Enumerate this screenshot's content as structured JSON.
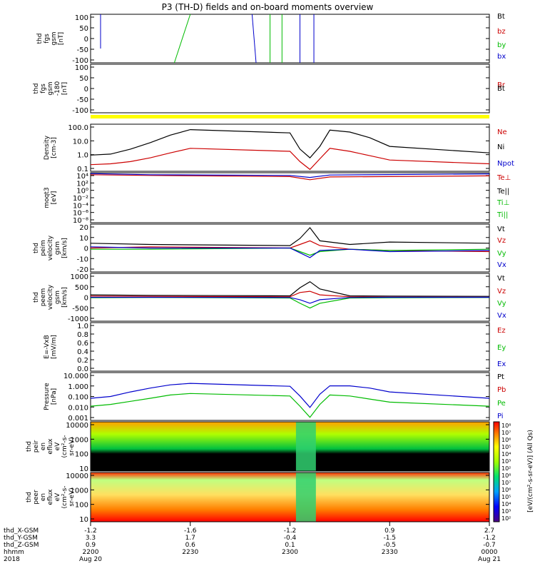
{
  "title": "P3 (TH-D) fields and on-board moments overview",
  "chart_data": {
    "type": "line",
    "title": "P3 (TH-D) fields and on-board moments overview",
    "panels": [
      {
        "id": "fgs",
        "ylabel_lines": [
          "thd",
          "fgs",
          "gsm",
          "[nT]"
        ],
        "yticks": [
          "100",
          "50",
          "0",
          "-50",
          "-100"
        ],
        "ylim": [
          -100,
          100
        ],
        "legend": [
          {
            "label": "Bt",
            "color": "#000000"
          },
          {
            "label": "bz",
            "color": "#cc0000"
          },
          {
            "label": "by",
            "color": "#00bb00"
          },
          {
            "label": "bx",
            "color": "#0000cc"
          }
        ]
      },
      {
        "id": "fgs_zoom",
        "ylabel_lines": [
          "thd",
          "fgs",
          "gsm",
          "-180",
          "[nT]"
        ],
        "yticks": [
          "100",
          "50",
          "0",
          "-50",
          "-100"
        ],
        "ylim": [
          -125,
          125
        ],
        "legend": [
          {
            "label": "Br",
            "color": "#cc0000"
          },
          {
            "label": "Bt",
            "color": "#000000"
          }
        ]
      },
      {
        "id": "density",
        "ylabel_lines": [
          "Density",
          "[cm-3]"
        ],
        "yticks": [
          "100.0",
          "10.0",
          "1.0",
          "0.1"
        ],
        "ylim": [
          0.05,
          300
        ],
        "scale": "log",
        "legend": [
          {
            "label": "Ne",
            "color": "#cc0000"
          },
          {
            "label": "Ni",
            "color": "#000000"
          },
          {
            "label": "Npot",
            "color": "#0000cc"
          }
        ],
        "series": [
          {
            "name": "Ni",
            "color": "#000000",
            "x": [
              2200,
              2210,
              2220,
              2230,
              2240,
              2250,
              2300,
              2305,
              2310,
              2315,
              2320,
              2330,
              2340,
              2350,
              2400
            ],
            "values": [
              1.0,
              1.2,
              3,
              10,
              40,
              110,
              60,
              3,
              0.6,
              5,
              100,
              70,
              25,
              5,
              1.5
            ]
          },
          {
            "name": "Ne",
            "color": "#cc0000",
            "x": [
              2200,
              2210,
              2220,
              2230,
              2240,
              2250,
              2300,
              2305,
              2310,
              2315,
              2320,
              2330,
              2340,
              2350,
              2400
            ],
            "values": [
              0.17,
              0.2,
              0.3,
              0.6,
              1.5,
              3.5,
              2,
              0.3,
              0.07,
              0.5,
              3.5,
              2,
              0.9,
              0.4,
              0.2
            ]
          }
        ]
      },
      {
        "id": "temperature",
        "ylabel_lines": [
          "moqt3",
          "[eV]"
        ],
        "yticks": [
          "10⁴",
          "10²",
          "10⁰",
          "10⁻²",
          "10⁻⁴",
          "10⁻⁶",
          "10⁻⁸"
        ],
        "ylim": [
          1e-09,
          10000.0
        ],
        "scale": "log",
        "legend": [
          {
            "label": "Te⊥",
            "color": "#cc0000"
          },
          {
            "label": "Te||",
            "color": "#000000"
          },
          {
            "label": "Ti⊥",
            "color": "#00bb00"
          },
          {
            "label": "Ti||",
            "color": "#00bb00"
          }
        ],
        "series": [
          {
            "name": "Te⊥",
            "color": "#cc0000",
            "x": [
              2200,
              2230,
              2300,
              2310,
              2320,
              2400
            ],
            "values": [
              3000,
              2000,
              1000,
              150,
              800,
              1500
            ]
          },
          {
            "name": "Ti⊥",
            "color": "#0000cc",
            "x": [
              2200,
              2230,
              2300,
              2310,
              2320,
              2400
            ],
            "values": [
              6000,
              3000,
              2000,
              600,
              2500,
              5000
            ]
          }
        ]
      },
      {
        "id": "ion_velocity",
        "ylabel_lines": [
          "thd",
          "peim",
          "velocity",
          "gsm",
          "[km/s]"
        ],
        "yticks": [
          "20",
          "10",
          "0",
          "-10",
          "-20"
        ],
        "ylim": [
          -20,
          20
        ],
        "legend": [
          {
            "label": "Vt",
            "color": "#000000"
          },
          {
            "label": "Vz",
            "color": "#cc0000"
          },
          {
            "label": "Vy",
            "color": "#00bb00"
          },
          {
            "label": "Vx",
            "color": "#0000cc"
          }
        ],
        "series": [
          {
            "name": "Vt",
            "color": "#000000",
            "x": [
              2200,
              2230,
              2300,
              2305,
              2310,
              2315,
              2330,
              2350,
              2400
            ],
            "values": [
              4,
              3,
              2,
              8,
              17,
              6,
              3,
              5,
              4
            ]
          },
          {
            "name": "Vz",
            "color": "#cc0000",
            "x": [
              2200,
              2230,
              2300,
              2305,
              2310,
              2315,
              2330,
              2350,
              2400
            ],
            "values": [
              0,
              1,
              0,
              3,
              6,
              2,
              -1,
              -2,
              -3
            ]
          },
          {
            "name": "Vy",
            "color": "#00bb00",
            "x": [
              2200,
              2230,
              2300,
              2305,
              2310,
              2315,
              2330,
              2350,
              2400
            ],
            "values": [
              -1,
              -1,
              0,
              -3,
              -6,
              -3,
              -1,
              -2,
              -1
            ]
          },
          {
            "name": "Vx",
            "color": "#0000cc",
            "x": [
              2200,
              2230,
              2300,
              2305,
              2310,
              2315,
              2330,
              2350,
              2400
            ],
            "values": [
              1,
              0,
              0,
              -4,
              -8,
              -2,
              -1,
              -3,
              -2
            ]
          }
        ]
      },
      {
        "id": "electron_velocity",
        "ylabel_lines": [
          "thd",
          "peem",
          "velocity",
          "gsm",
          "[km/s]"
        ],
        "yticks": [
          "1000",
          "500",
          "0",
          "-500",
          "-1000"
        ],
        "ylim": [
          -1000,
          1000
        ],
        "legend": [
          {
            "label": "Vt",
            "color": "#000000"
          },
          {
            "label": "Vz",
            "color": "#cc0000"
          },
          {
            "label": "Vy",
            "color": "#00bb00"
          },
          {
            "label": "Vx",
            "color": "#0000cc"
          }
        ],
        "series": [
          {
            "name": "Vt",
            "color": "#000000",
            "x": [
              2200,
              2230,
              2300,
              2305,
              2310,
              2315,
              2330,
              2350,
              2400
            ],
            "values": [
              100,
              80,
              60,
              400,
              650,
              350,
              60,
              50,
              40
            ]
          },
          {
            "name": "Vz",
            "color": "#cc0000",
            "x": [
              2200,
              2230,
              2300,
              2305,
              2310,
              2315,
              2330,
              2350,
              2400
            ],
            "values": [
              50,
              40,
              20,
              200,
              250,
              100,
              20,
              10,
              0
            ]
          },
          {
            "name": "Vy",
            "color": "#00bb00",
            "x": [
              2200,
              2230,
              2300,
              2305,
              2310,
              2315,
              2330,
              2350,
              2400
            ],
            "values": [
              -20,
              -10,
              -30,
              -250,
              -450,
              -250,
              -30,
              -20,
              -10
            ]
          },
          {
            "name": "Vx",
            "color": "#0000cc",
            "x": [
              2200,
              2230,
              2300,
              2305,
              2310,
              2315,
              2330,
              2350,
              2400
            ],
            "values": [
              0,
              0,
              -10,
              -100,
              -250,
              -100,
              -10,
              0,
              0
            ]
          }
        ]
      },
      {
        "id": "efield",
        "ylabel_lines": [
          "E=-VxB",
          "[mV/m]"
        ],
        "yticks": [
          "1.0",
          "0.8",
          "0.6",
          "0.4",
          "0.2",
          "0.0"
        ],
        "ylim": [
          0,
          1
        ],
        "legend": [
          {
            "label": "Ez",
            "color": "#cc0000"
          },
          {
            "label": "Ey",
            "color": "#00bb00"
          },
          {
            "label": "Ex",
            "color": "#0000cc"
          }
        ]
      },
      {
        "id": "pressure",
        "ylabel_lines": [
          "Pressure",
          "[nPa]"
        ],
        "yticks": [
          "10.000",
          "1.000",
          "0.100",
          "0.010",
          "0.001"
        ],
        "ylim": [
          0.0008,
          40
        ],
        "scale": "log",
        "legend": [
          {
            "label": "Pt",
            "color": "#000000"
          },
          {
            "label": "Pb",
            "color": "#cc0000"
          },
          {
            "label": "Pe",
            "color": "#00bb00"
          },
          {
            "label": "Pi",
            "color": "#0000cc"
          }
        ],
        "series": [
          {
            "name": "Pi",
            "color": "#0000cc",
            "x": [
              2200,
              2210,
              2220,
              2230,
              2240,
              2250,
              2300,
              2305,
              2310,
              2315,
              2320,
              2330,
              2340,
              2350,
              2400
            ],
            "values": [
              0.12,
              0.18,
              0.5,
              1.2,
              2.5,
              3.5,
              1.8,
              0.2,
              0.015,
              0.3,
              2,
              2,
              1.2,
              0.5,
              0.12
            ]
          },
          {
            "name": "Pe",
            "color": "#00bb00",
            "x": [
              2200,
              2210,
              2220,
              2230,
              2240,
              2250,
              2300,
              2305,
              2310,
              2315,
              2320,
              2330,
              2340,
              2350,
              2400
            ],
            "values": [
              0.02,
              0.03,
              0.06,
              0.12,
              0.25,
              0.35,
              0.2,
              0.02,
              0.0016,
              0.03,
              0.25,
              0.2,
              0.1,
              0.05,
              0.02
            ]
          }
        ]
      },
      {
        "id": "ion_spectrogram",
        "type": "heatmap",
        "ylabel_lines": [
          "thd",
          "peir",
          "en",
          "eflux",
          "eV",
          "(cm²-s-",
          "sr-eV)"
        ],
        "yticks": [
          "10000",
          "1000",
          "100",
          "10"
        ]
      },
      {
        "id": "electron_spectrogram",
        "type": "heatmap",
        "ylabel_lines": [
          "thd",
          "peer",
          "en",
          "eflux",
          "eV",
          "(cm²-s-",
          "sr-eV)"
        ],
        "yticks": [
          "10000",
          "1000",
          "100",
          "10"
        ]
      }
    ],
    "colorbar": {
      "ticks": [
        "10⁸",
        "10⁷",
        "10⁶",
        "10⁵",
        "10⁴",
        "10³",
        "10²",
        "10⁸",
        "10⁷",
        "10⁶",
        "10⁵",
        "10⁴",
        "10³",
        "10²"
      ],
      "label": "[eV/(cm²-s-sr-eV)] (All Qs)"
    },
    "x_axis": {
      "rows": [
        {
          "label": "thd_X-GSM",
          "values": [
            "-1.2",
            "-1.6",
            "-1.2",
            "0.9",
            "2.7"
          ]
        },
        {
          "label": "thd_Y-GSM",
          "values": [
            "3.3",
            "1.7",
            "-0.4",
            "-1.5",
            "-1.2"
          ]
        },
        {
          "label": "thd_Z-GSM",
          "values": [
            "0.9",
            "0.6",
            "0.1",
            "-0.5",
            "-0.7"
          ]
        },
        {
          "label": "hhmm",
          "values": [
            "2200",
            "2230",
            "2300",
            "2330",
            "0000"
          ]
        },
        {
          "label": "2018",
          "values": [
            "Aug 20",
            "",
            "",
            "",
            "Aug 21"
          ]
        }
      ]
    }
  }
}
